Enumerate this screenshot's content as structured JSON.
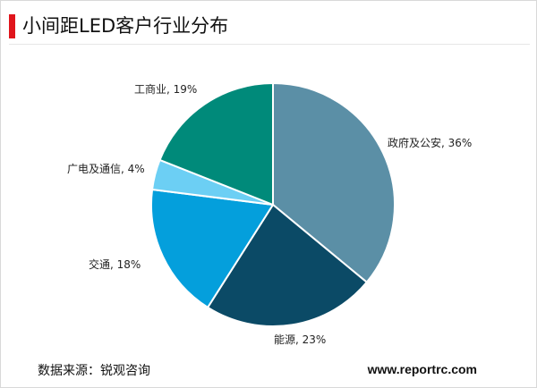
{
  "chart_data": {
    "type": "pie",
    "title": "小间距LED客户行业分布",
    "slices": [
      {
        "name": "政府及公安",
        "value": 36,
        "label": "政府及公安, 36%",
        "color": "#5b8fa6"
      },
      {
        "name": "能源",
        "value": 23,
        "label": "能源, 23%",
        "color": "#0b4a66"
      },
      {
        "name": "交通",
        "value": 18,
        "label": "交通, 18%",
        "color": "#049fdc"
      },
      {
        "name": "广电及通信",
        "value": 4,
        "label": "广电及通信, 4%",
        "color": "#6ccff4"
      },
      {
        "name": "工商业",
        "value": 19,
        "label": "工商业, 19%",
        "color": "#008a7a"
      }
    ],
    "start": "12 o'clock",
    "direction": "clockwise"
  },
  "footer": {
    "source": "数据来源：锐观咨询",
    "website": "www.reportrc.com"
  }
}
